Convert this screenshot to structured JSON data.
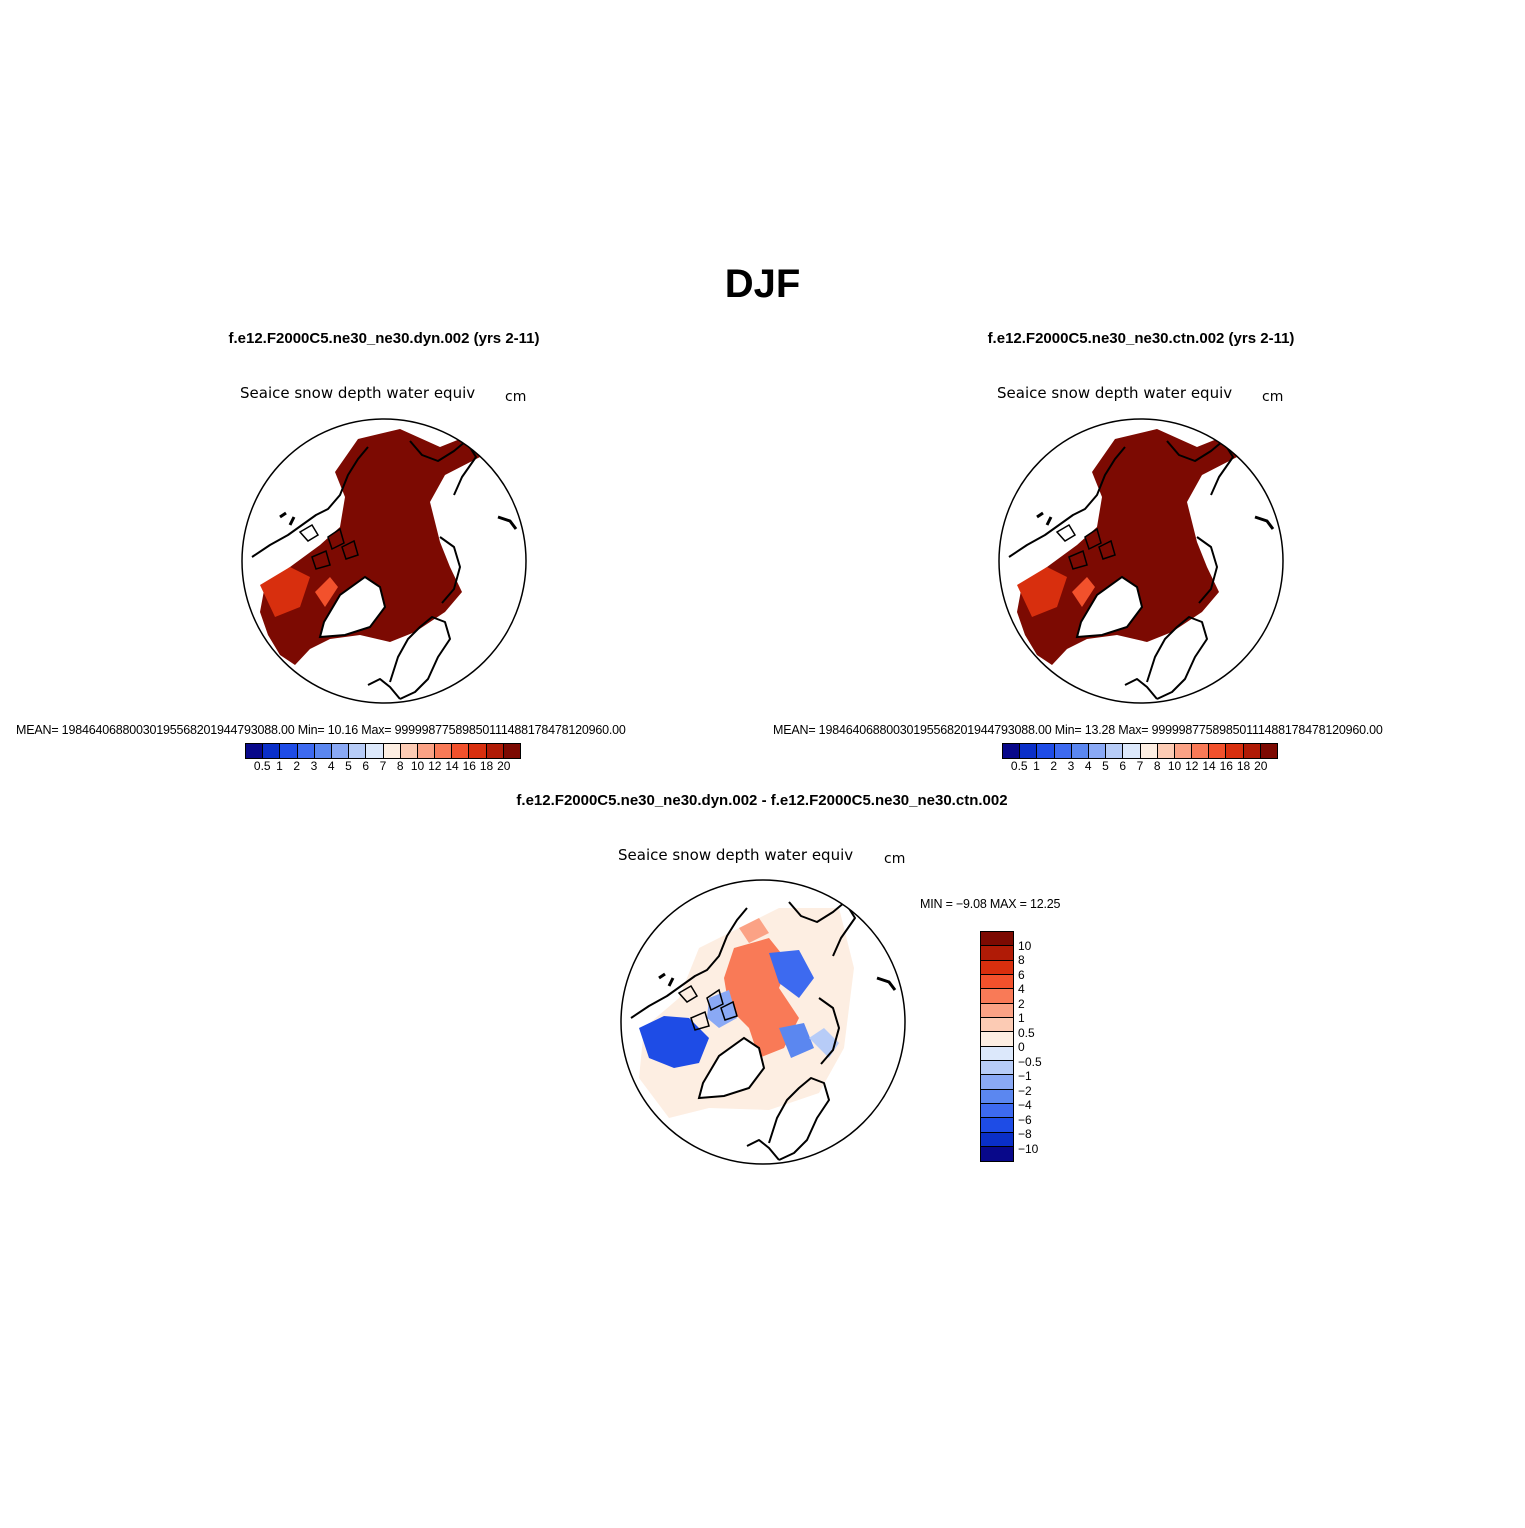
{
  "title": "DJF",
  "panels": [
    {
      "id": "dyn",
      "case_title": "f.e12.F2000C5.ne30_ne30.dyn.002 (yrs 2-11)",
      "variable": "Seaice snow depth water equiv",
      "units": "cm",
      "stats": "MEAN=  19846406880030195568201944793088.00   Min=    10.16   Max=  99999877589850111488178478120960.00"
    },
    {
      "id": "ctn",
      "case_title": "f.e12.F2000C5.ne30_ne30.ctn.002 (yrs 2-11)",
      "variable": "Seaice snow depth water equiv",
      "units": "cm",
      "stats": "MEAN=  19846406880030195568201944793088.00   Min=    13.28   Max=  99999877589850111488178478120960.00"
    }
  ],
  "difference": {
    "case_title": "f.e12.F2000C5.ne30_ne30.dyn.002 - f.e12.F2000C5.ne30_ne30.ctn.002",
    "variable": "Seaice snow depth water equiv",
    "units": "cm",
    "minmax": "MIN =   −9.08  MAX =   12.25"
  },
  "abs_colorbar": {
    "labels": [
      "0.5",
      "1",
      "2",
      "3",
      "4",
      "5",
      "6",
      "7",
      "8",
      "10",
      "12",
      "14",
      "16",
      "18",
      "20"
    ],
    "colors": [
      "#08088a",
      "#0a2fc8",
      "#1e4ce6",
      "#3d6af0",
      "#5b87f0",
      "#8aa9f5",
      "#b7ccf7",
      "#dce8fb",
      "#fdeee2",
      "#fccbb4",
      "#fba285",
      "#f97a57",
      "#f2512c",
      "#d82f0e",
      "#b01b06",
      "#7c0a02"
    ]
  },
  "diff_colorbar": {
    "labels": [
      "10",
      "8",
      "6",
      "4",
      "2",
      "1",
      "0.5",
      "0",
      "−0.5",
      "−1",
      "−2",
      "−4",
      "−6",
      "−8",
      "−10"
    ],
    "colors": [
      "#7c0a02",
      "#b01b06",
      "#d82f0e",
      "#f2512c",
      "#f97a57",
      "#fba285",
      "#fccbb4",
      "#fdeee2",
      "#dce8fb",
      "#b7ccf7",
      "#8aa9f5",
      "#5b87f0",
      "#3d6af0",
      "#1e4ce6",
      "#0a2fc8",
      "#08088a"
    ]
  }
}
